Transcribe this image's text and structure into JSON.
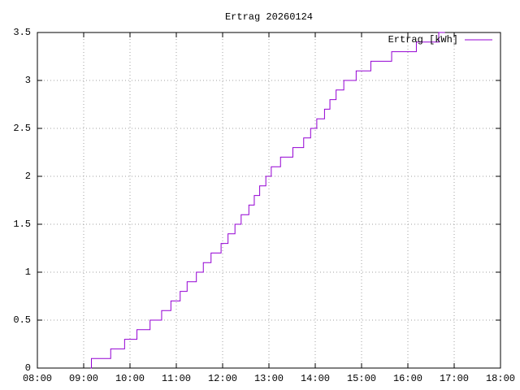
{
  "chart_data": {
    "type": "line",
    "step": true,
    "title": "Ertrag 20260124",
    "x": [
      "09:09",
      "09:10",
      "09:35",
      "09:53",
      "10:09",
      "10:26",
      "10:41",
      "10:53",
      "11:05",
      "11:14",
      "11:26",
      "11:35",
      "11:45",
      "11:58",
      "12:07",
      "12:16",
      "12:24",
      "12:34",
      "12:41",
      "12:48",
      "12:56",
      "13:03",
      "13:15",
      "13:31",
      "13:45",
      "13:54",
      "14:02",
      "14:12",
      "14:19",
      "14:27",
      "14:37",
      "14:53",
      "15:12",
      "15:39",
      "16:11",
      "16:40",
      "16:48"
    ],
    "series": [
      {
        "name": "Ertrag [kWh]",
        "color": "#9400d3",
        "values": [
          0,
          0.1,
          0.2,
          0.3,
          0.4,
          0.5,
          0.6,
          0.7,
          0.8,
          0.9,
          1.0,
          1.1,
          1.2,
          1.3,
          1.4,
          1.5,
          1.6,
          1.7,
          1.8,
          1.9,
          2.0,
          2.1,
          2.2,
          2.3,
          2.4,
          2.5,
          2.6,
          2.7,
          2.8,
          2.9,
          3.0,
          3.1,
          3.2,
          3.3,
          3.4,
          3.5,
          3.5
        ]
      }
    ],
    "xlim": [
      "08:00",
      "18:00"
    ],
    "xticks": [
      "08:00",
      "09:00",
      "10:00",
      "11:00",
      "12:00",
      "13:00",
      "14:00",
      "15:00",
      "16:00",
      "17:00",
      "18:00"
    ],
    "ylim": [
      0,
      3.5
    ],
    "yticks": [
      0,
      0.5,
      1,
      1.5,
      2,
      2.5,
      3,
      3.5
    ],
    "grid": true,
    "legend": "top-right"
  }
}
